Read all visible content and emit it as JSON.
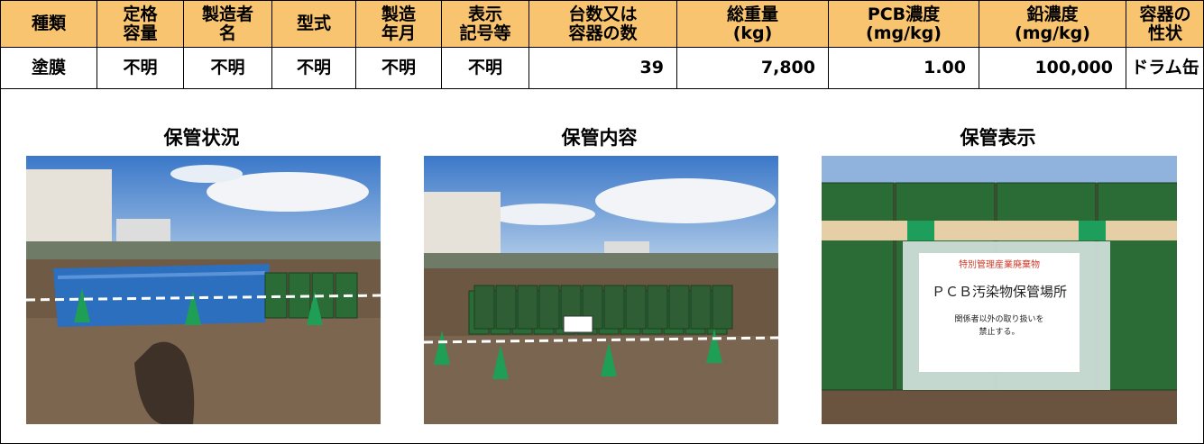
{
  "table": {
    "header": [
      [
        "種類"
      ],
      [
        "定格",
        "容量"
      ],
      [
        "製造者",
        "名"
      ],
      [
        "型式"
      ],
      [
        "製造",
        "年月"
      ],
      [
        "表示",
        "記号等"
      ],
      [
        "台数又は",
        "容器の数"
      ],
      [
        "総重量",
        "(kg)"
      ],
      [
        "PCB濃度",
        "(mg/kg)"
      ],
      [
        "鉛濃度",
        "(mg/kg)"
      ],
      [
        "容器の",
        "性状"
      ]
    ],
    "rows": [
      [
        "塗膜",
        "不明",
        "不明",
        "不明",
        "不明",
        "不明",
        "39",
        "7,800",
        "1.00",
        "100,000",
        "ドラム缶"
      ]
    ]
  },
  "photos": [
    {
      "caption": "保管状況"
    },
    {
      "caption": "保管内容"
    },
    {
      "caption": "保管表示",
      "sign": [
        "特別管理産業廃棄物",
        "ＰＣＢ汚染物保管場所",
        "関係者以外の取り扱いを",
        "禁止する。"
      ]
    }
  ]
}
